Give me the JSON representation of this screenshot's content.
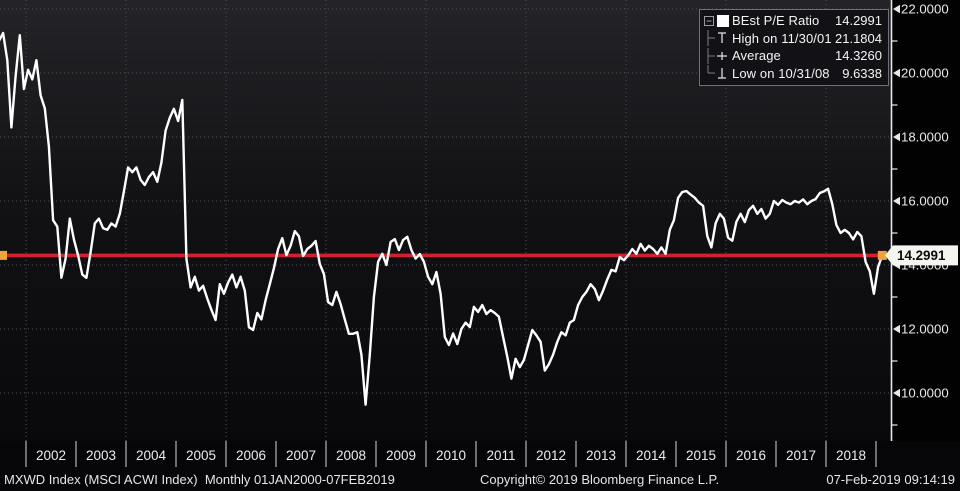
{
  "chart_data": {
    "type": "line",
    "title": "",
    "legend_position": "top-right",
    "grid": "dotted",
    "background": "dark-terminal",
    "last_value": 14.2991,
    "high": {
      "date": "11/30/01",
      "value": 21.1804
    },
    "average": 14.326,
    "low": {
      "date": "10/31/08",
      "value": 9.6338
    },
    "last_line_color": "#d12130",
    "marker_color": "#eda43c",
    "series": [
      {
        "name": "BEst P/E Ratio",
        "color": "#ffffff",
        "start_year_month": "2001-06",
        "frequency": "monthly",
        "monthly_values": [
          21.0,
          21.25,
          20.4,
          18.3,
          19.9,
          21.1804,
          19.5,
          20.1,
          19.8,
          20.4,
          19.3,
          18.9,
          17.7,
          15.4,
          15.2,
          13.6,
          14.2,
          15.45,
          14.8,
          14.3,
          13.7,
          13.6,
          14.4,
          15.3,
          15.45,
          15.15,
          15.1,
          15.3,
          15.2,
          15.6,
          16.3,
          17.05,
          16.9,
          17.05,
          16.66,
          16.5,
          16.75,
          16.9,
          16.6,
          17.2,
          18.2,
          18.6,
          18.88,
          18.5,
          19.16,
          14.2,
          13.3,
          13.63,
          13.2,
          13.35,
          12.95,
          12.6,
          12.28,
          13.4,
          13.1,
          13.45,
          13.7,
          13.3,
          13.63,
          13.2,
          12.06,
          11.97,
          12.5,
          12.3,
          12.9,
          13.4,
          13.9,
          14.5,
          14.84,
          14.31,
          14.6,
          15.06,
          14.9,
          14.28,
          14.5,
          14.6,
          14.75,
          14.03,
          13.72,
          12.84,
          12.75,
          13.16,
          12.78,
          12.3,
          11.85,
          11.85,
          11.9,
          11.2,
          9.6338,
          11.2,
          13.0,
          14.1,
          14.35,
          14.0,
          14.72,
          14.81,
          14.47,
          14.78,
          14.88,
          14.47,
          14.2,
          14.34,
          14.1,
          13.63,
          13.4,
          13.78,
          13.1,
          11.75,
          11.5,
          11.86,
          11.53,
          12.0,
          12.2,
          12.06,
          12.69,
          12.53,
          12.75,
          12.47,
          12.59,
          12.5,
          12.38,
          11.75,
          11.13,
          10.45,
          11.07,
          10.81,
          11.03,
          11.5,
          11.97,
          11.8,
          11.6,
          10.7,
          10.9,
          11.2,
          11.6,
          11.9,
          11.8,
          12.2,
          12.28,
          12.75,
          13.0,
          13.16,
          13.4,
          13.25,
          12.9,
          13.2,
          13.55,
          13.85,
          13.8,
          14.25,
          14.15,
          14.3,
          14.5,
          14.35,
          14.66,
          14.45,
          14.6,
          14.5,
          14.35,
          14.55,
          14.35,
          15.1,
          15.4,
          16.1,
          16.28,
          16.31,
          16.2,
          16.1,
          15.95,
          15.85,
          14.9,
          14.55,
          15.3,
          15.6,
          15.45,
          14.85,
          14.76,
          15.35,
          15.6,
          15.34,
          15.72,
          15.85,
          15.6,
          15.75,
          15.45,
          15.6,
          16.0,
          15.88,
          16.03,
          15.95,
          15.9,
          16.0,
          15.95,
          16.05,
          15.9,
          16.0,
          16.06,
          16.25,
          16.3,
          16.38,
          15.9,
          15.25,
          15.0,
          15.1,
          15.0,
          14.8,
          15.03,
          14.9,
          14.1,
          13.8,
          13.1,
          13.94,
          14.2991
        ]
      }
    ],
    "x_axis": {
      "year_labels": [
        2002,
        2003,
        2004,
        2005,
        2006,
        2007,
        2008,
        2009,
        2010,
        2011,
        2012,
        2013,
        2014,
        2015,
        2016,
        2017,
        2018
      ],
      "first_tick_year": 2002,
      "last_tick_year": 2019,
      "gridline_years": [
        2002,
        2004,
        2006,
        2008,
        2010,
        2012,
        2014,
        2016,
        2018
      ]
    },
    "y_axis": {
      "major_ticks": [
        22,
        20,
        18,
        16,
        14,
        12,
        10
      ],
      "minor_ticks": [
        21,
        19,
        17,
        15,
        13,
        11,
        9
      ],
      "tick_decimals": 4,
      "side": "right"
    }
  },
  "legend": {
    "rows": [
      {
        "label": "BEst P/E Ratio",
        "value": "14.2991"
      },
      {
        "label": "High on 11/30/01",
        "value": "21.1804"
      },
      {
        "label": "Average",
        "value": "14.3260"
      },
      {
        "label": "Low on 10/31/08",
        "value": "9.6338"
      }
    ]
  },
  "badge": {
    "text": "14.2991"
  },
  "footer": {
    "left": "MXWD Index (MSCI ACWI Index)  Monthly 01JAN2000-07FEB2019",
    "center": "Copyright© 2019 Bloomberg Finance L.P.",
    "right": "07-Feb-2019 09:14:19"
  }
}
